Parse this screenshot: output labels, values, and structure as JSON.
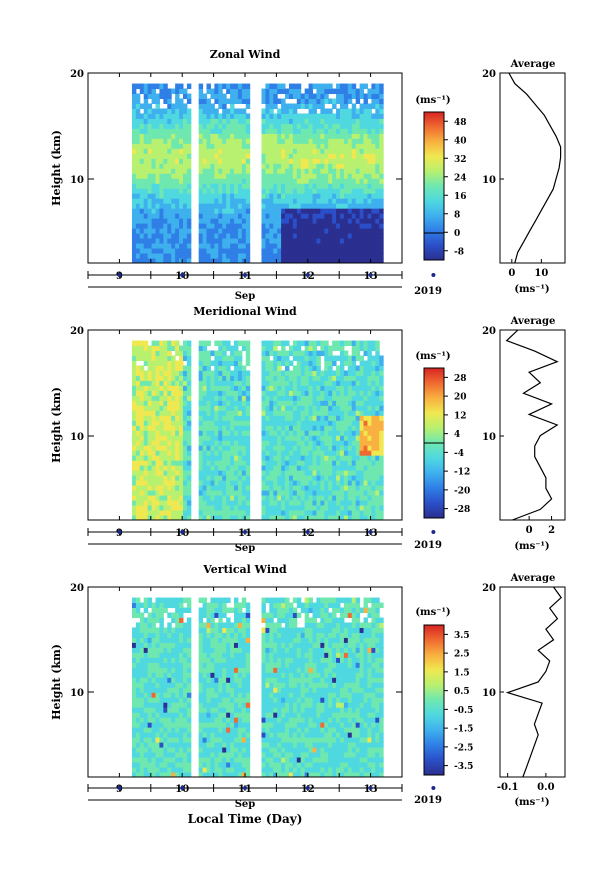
{
  "chart_data": [
    {
      "type": "heatmap",
      "title": "Zonal Wind",
      "ylabel": "Height (km)",
      "xlabel": "Sep",
      "year": "2019",
      "unit": "(ms⁻¹)",
      "xlim": [
        8.5,
        13.5
      ],
      "ylim": [
        2,
        20
      ],
      "x_ticks": [
        "9",
        "10",
        "11",
        "12",
        "13"
      ],
      "y_ticks": [
        "10",
        "20"
      ],
      "colorbar_ticks": [
        "48",
        "40",
        "32",
        "24",
        "16",
        "8",
        "0",
        "-8"
      ],
      "clim": [
        -12,
        52
      ],
      "data_gaps_days": [
        [
          10.15,
          10.25
        ],
        [
          11.05,
          11.28
        ]
      ],
      "profile": {
        "title": "Average",
        "xlabel": "(ms⁻¹)",
        "x_ticks": [
          "0",
          "10"
        ],
        "xlim": [
          -4,
          18
        ],
        "height_km": [
          2,
          3,
          4,
          5,
          6,
          7,
          8,
          9,
          10,
          11,
          12,
          13,
          14,
          15,
          16,
          17,
          18,
          19,
          20
        ],
        "values": [
          1,
          2,
          4,
          6,
          8,
          10,
          12,
          14,
          15,
          16,
          16.5,
          16.5,
          15,
          13,
          11,
          8,
          5,
          1,
          -1
        ]
      }
    },
    {
      "type": "heatmap",
      "title": "Meridional Wind",
      "ylabel": "Height (km)",
      "xlabel": "Sep",
      "year": "2019",
      "unit": "(ms⁻¹)",
      "xlim": [
        8.5,
        13.5
      ],
      "ylim": [
        2,
        20
      ],
      "x_ticks": [
        "9",
        "10",
        "11",
        "12",
        "13"
      ],
      "y_ticks": [
        "10",
        "20"
      ],
      "colorbar_ticks": [
        "28",
        "20",
        "12",
        "4",
        "-4",
        "-12",
        "-20",
        "-28"
      ],
      "clim": [
        -32,
        32
      ],
      "data_gaps_days": [
        [
          10.15,
          10.25
        ],
        [
          11.05,
          11.28
        ]
      ],
      "profile": {
        "title": "Average",
        "xlabel": "(ms⁻¹)",
        "x_ticks": [
          "0",
          "2"
        ],
        "xlim": [
          -2.6,
          3.2
        ],
        "height_km": [
          2,
          3,
          4,
          5,
          6,
          7,
          8,
          9,
          10,
          11,
          12,
          13,
          14,
          15,
          16,
          17,
          18,
          19,
          20
        ],
        "values": [
          -1.5,
          1,
          2,
          1.5,
          1.5,
          1,
          0.5,
          0.5,
          1,
          2.5,
          0,
          2,
          -0.5,
          1,
          0,
          2.5,
          0.5,
          -2,
          -1
        ]
      }
    },
    {
      "type": "heatmap",
      "title": "Vertical Wind",
      "ylabel": "Height (km)",
      "xlabel": "Sep",
      "xlabel2": "Local Time (Day)",
      "year": "2019",
      "unit": "(ms⁻¹)",
      "xlim": [
        8.5,
        13.5
      ],
      "ylim": [
        2,
        20
      ],
      "x_ticks": [
        "9",
        "10",
        "11",
        "12",
        "13"
      ],
      "y_ticks": [
        "10",
        "20"
      ],
      "colorbar_ticks": [
        "3.5",
        "2.5",
        "1.5",
        "0.5",
        "-0.5",
        "-1.5",
        "-2.5",
        "-3.5"
      ],
      "clim": [
        -4,
        4
      ],
      "data_gaps_days": [
        [
          10.15,
          10.25
        ],
        [
          11.05,
          11.28
        ]
      ],
      "profile": {
        "title": "Average",
        "xlabel": "(ms⁻¹)",
        "x_ticks": [
          "-0.1",
          "0.0"
        ],
        "xlim": [
          -0.12,
          0.05
        ],
        "height_km": [
          2,
          3,
          4,
          5,
          6,
          7,
          8,
          9,
          10,
          11,
          12,
          13,
          14,
          15,
          16,
          17,
          18,
          19,
          20
        ],
        "values": [
          -0.06,
          -0.05,
          -0.04,
          -0.03,
          -0.02,
          -0.03,
          -0.02,
          -0.01,
          -0.1,
          -0.02,
          0.0,
          0.01,
          -0.02,
          0.02,
          0.0,
          0.03,
          0.01,
          0.04,
          0.02
        ]
      }
    }
  ],
  "colors": {
    "colormap": [
      "#2b2f8f",
      "#2b4fc8",
      "#2f7fe6",
      "#3fb0ee",
      "#4fd8e0",
      "#6fe8b0",
      "#b8f070",
      "#f0e850",
      "#f8b040",
      "#f06a30",
      "#d82424"
    ]
  }
}
